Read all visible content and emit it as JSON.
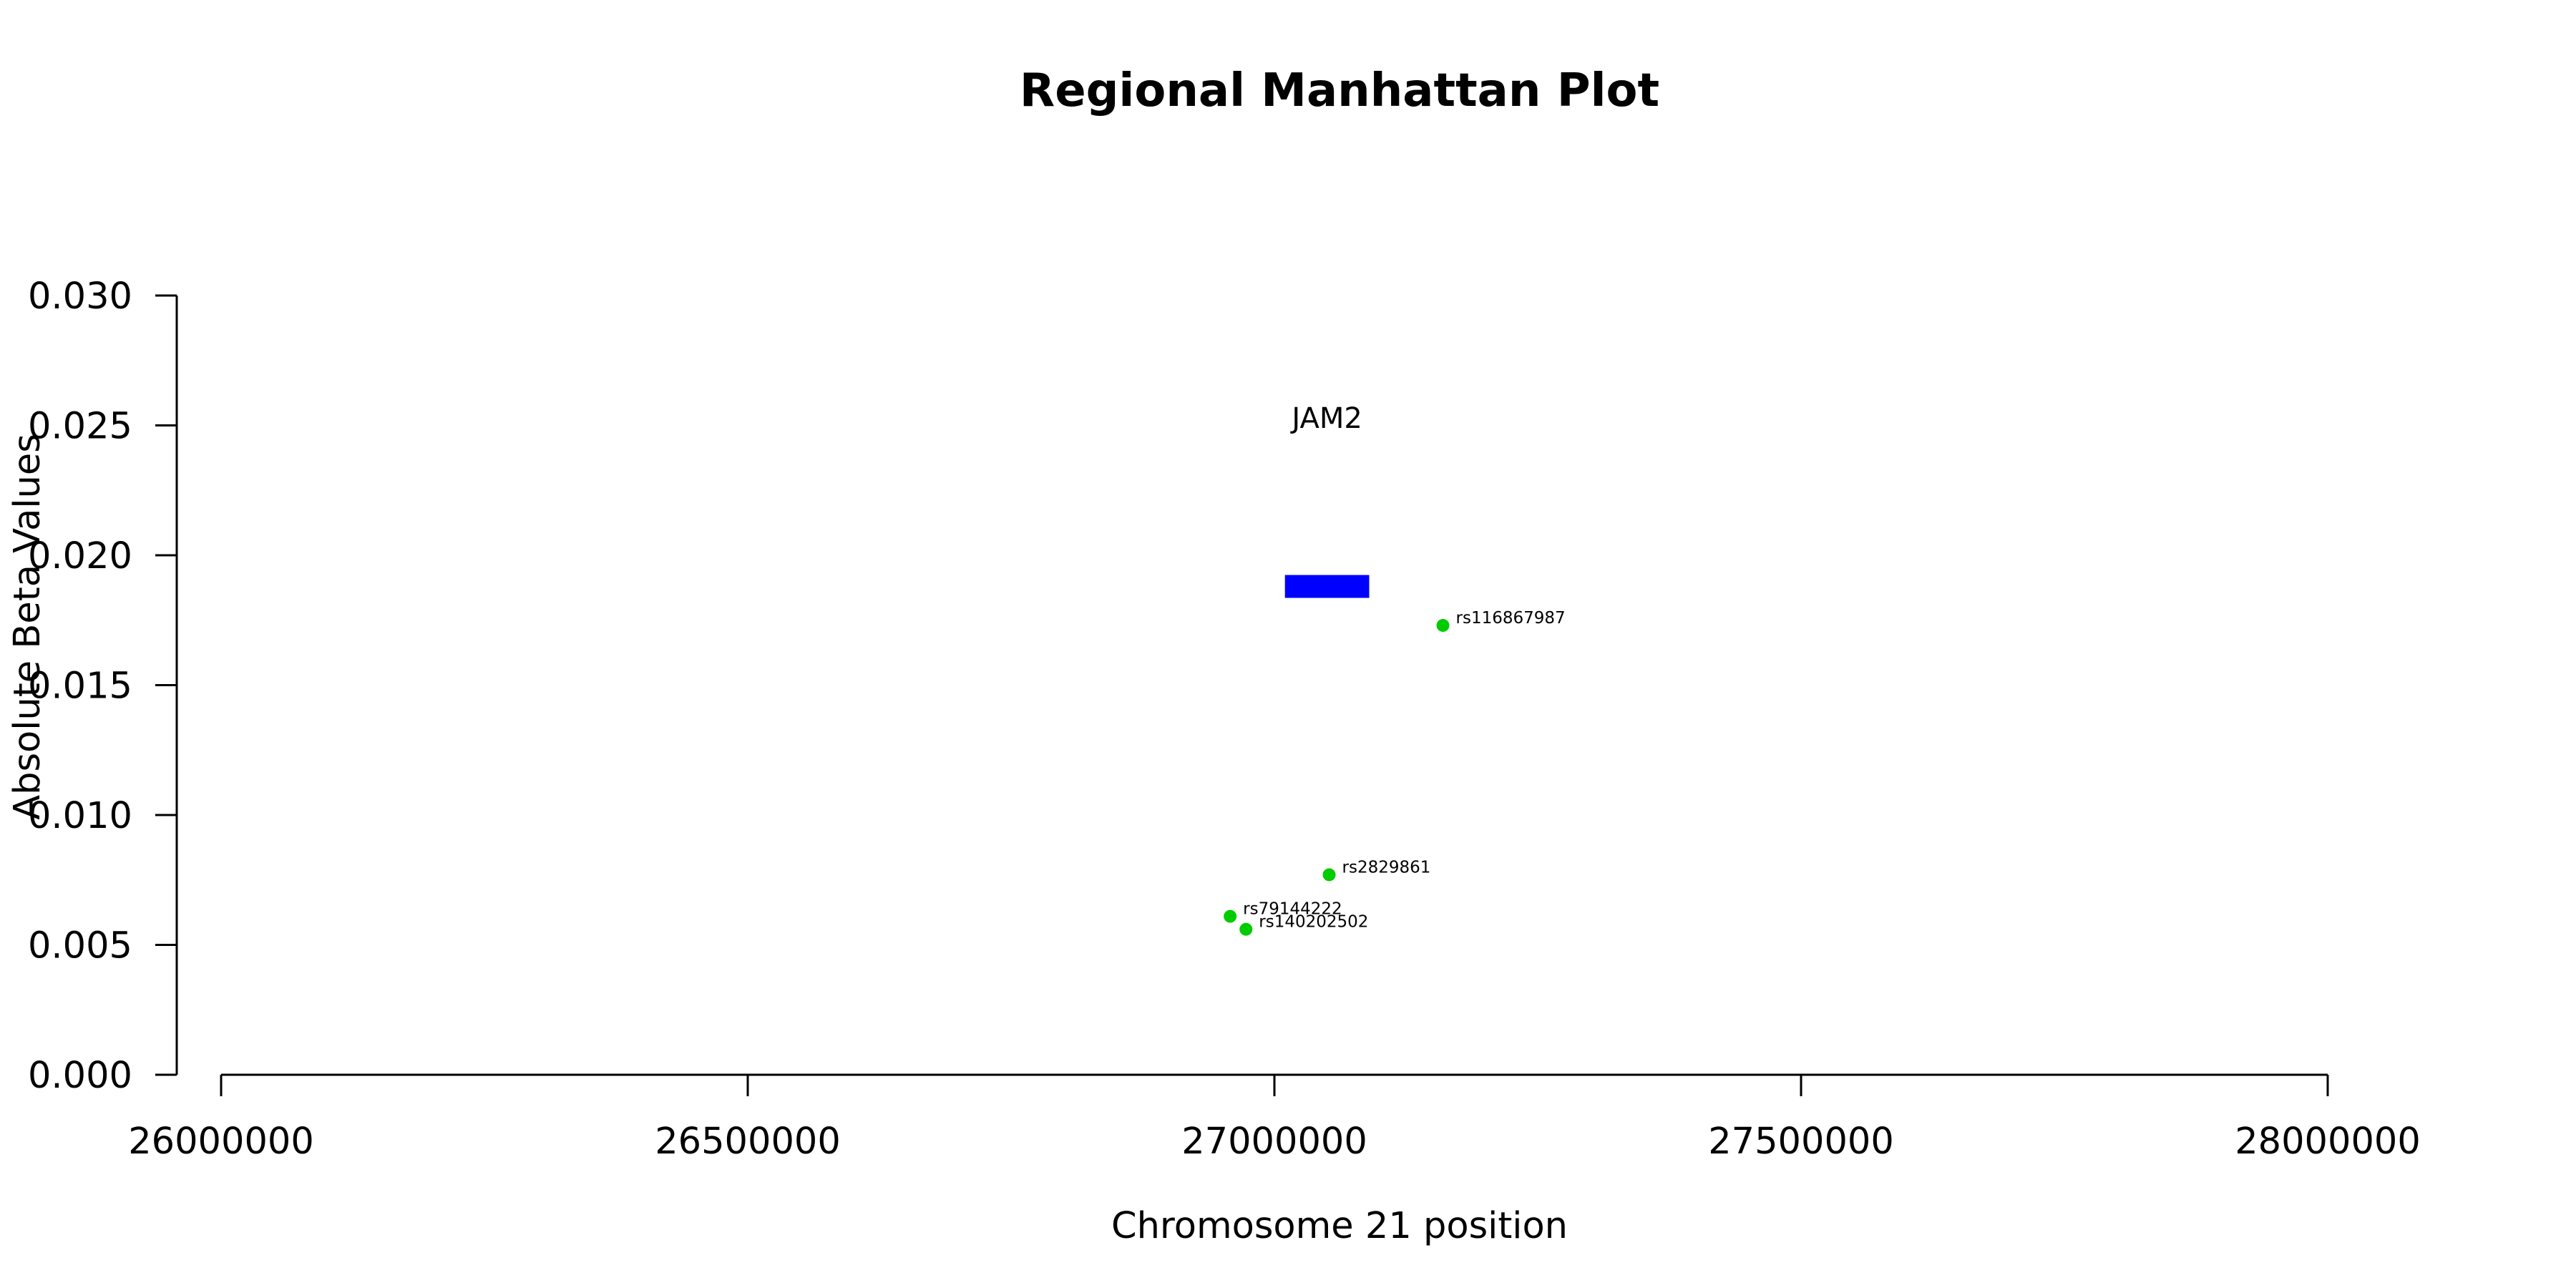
{
  "chart_data": {
    "type": "scatter",
    "title": "Regional Manhattan Plot",
    "xlabel": "Chromosome 21 position",
    "ylabel": "Absolute Beta Values",
    "xlim": [
      26000000,
      28000000
    ],
    "ylim": [
      0,
      0.03
    ],
    "x_ticks": [
      "26000000",
      "26500000",
      "27000000",
      "27500000",
      "28000000"
    ],
    "y_ticks": [
      "0.000",
      "0.005",
      "0.010",
      "0.015",
      "0.020",
      "0.025",
      "0.030"
    ],
    "grid": false,
    "genes": [
      {
        "name": "JAM2",
        "start": 27010000,
        "end": 27090000,
        "y": 0.0188,
        "color": "#0000FF"
      }
    ],
    "points": [
      {
        "x": 27160000,
        "y": 0.0173,
        "label": "rs116867987"
      },
      {
        "x": 27052000,
        "y": 0.0077,
        "label": "rs2829861"
      },
      {
        "x": 26958000,
        "y": 0.0061,
        "label": "rs79144222"
      },
      {
        "x": 26973000,
        "y": 0.0056,
        "label": "rs140202502"
      }
    ],
    "point_color": "#00CC00"
  }
}
